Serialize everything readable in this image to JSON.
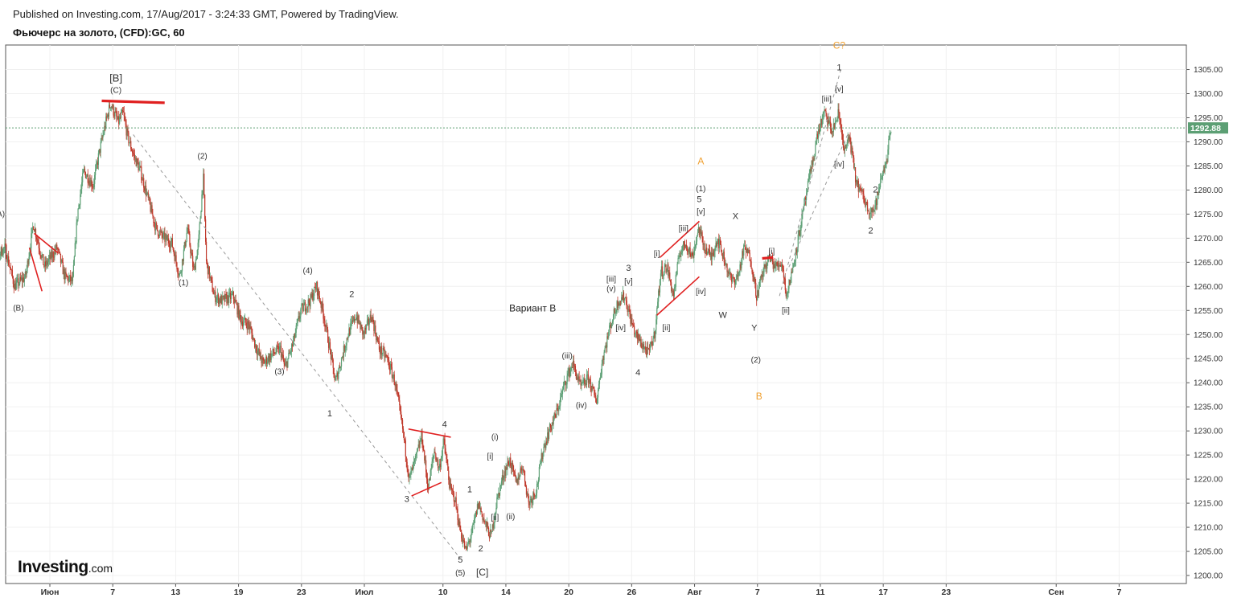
{
  "header": {
    "published": "Published on Investing.com, 17/Aug/2017 - 3:24:33 GMT, Powered by TradingView.",
    "title": "Фьючерс на золото, (CFD):GC, 60"
  },
  "logo": {
    "brand": "Investing",
    "suffix": ".com"
  },
  "colors": {
    "up": "#5c9f74",
    "down": "#c0392b",
    "orange_label": "#f0a030",
    "red_line": "#e02020",
    "dashed": "#999999",
    "price_line": "#5c9f74"
  },
  "chart_data": {
    "type": "candlestick",
    "interval": "60",
    "current_price": 1292.88,
    "current_price_label": "1292.88",
    "ylim": [
      1198,
      1310
    ],
    "y_ticks": [
      1200,
      1205,
      1210,
      1215,
      1220,
      1225,
      1230,
      1235,
      1240,
      1245,
      1250,
      1255,
      1260,
      1265,
      1270,
      1275,
      1280,
      1285,
      1290,
      1295,
      1300,
      1305
    ],
    "y_tick_labels": [
      "1200.00",
      "1205.00",
      "1210.00",
      "1215.00",
      "1220.00",
      "1225.00",
      "1230.00",
      "1235.00",
      "1240.00",
      "1245.00",
      "1250.00",
      "1255.00",
      "1260.00",
      "1265.00",
      "1270.00",
      "1275.00",
      "1280.00",
      "1285.00",
      "1290.00",
      "1295.00",
      "1300.00",
      "1305.00"
    ],
    "xlim": [
      -4.5,
      71
    ],
    "x_ticks": [
      {
        "day": 0,
        "label": "Июн"
      },
      {
        "day": 4,
        "label": "7"
      },
      {
        "day": 8,
        "label": "13"
      },
      {
        "day": 12,
        "label": "19"
      },
      {
        "day": 16,
        "label": "23"
      },
      {
        "day": 20,
        "label": "Июл"
      },
      {
        "day": 25,
        "label": "10"
      },
      {
        "day": 29,
        "label": "14"
      },
      {
        "day": 33,
        "label": "20"
      },
      {
        "day": 37,
        "label": "26"
      },
      {
        "day": 41,
        "label": "Авг"
      },
      {
        "day": 45,
        "label": "7"
      },
      {
        "day": 49,
        "label": "11"
      },
      {
        "day": 53,
        "label": "17"
      },
      {
        "day": 57,
        "label": "23"
      },
      {
        "day": 64,
        "label": "Сен"
      },
      {
        "day": 68,
        "label": "7"
      }
    ],
    "price_path": [
      [
        -4.4,
        1268
      ],
      [
        -3.5,
        1266
      ],
      [
        -2.8,
        1268
      ],
      [
        -2.2,
        1260
      ],
      [
        -1.5,
        1262
      ],
      [
        -1.0,
        1273
      ],
      [
        -0.3,
        1264
      ],
      [
        0.5,
        1268
      ],
      [
        1.0,
        1262
      ],
      [
        1.5,
        1261
      ],
      [
        1.8,
        1275
      ],
      [
        2.2,
        1284
      ],
      [
        2.8,
        1281
      ],
      [
        3.2,
        1288
      ],
      [
        3.6,
        1294
      ],
      [
        3.9,
        1298
      ],
      [
        4.4,
        1294
      ],
      [
        4.7,
        1296
      ],
      [
        5.0,
        1291
      ],
      [
        5.4,
        1287
      ],
      [
        5.8,
        1284
      ],
      [
        6.3,
        1278
      ],
      [
        6.8,
        1272
      ],
      [
        7.3,
        1270
      ],
      [
        7.8,
        1269
      ],
      [
        8.3,
        1262
      ],
      [
        8.8,
        1272
      ],
      [
        9.2,
        1263
      ],
      [
        9.5,
        1269
      ],
      [
        9.8,
        1283
      ],
      [
        10.0,
        1265
      ],
      [
        10.5,
        1258
      ],
      [
        11.0,
        1257
      ],
      [
        11.7,
        1258
      ],
      [
        12.2,
        1253
      ],
      [
        12.7,
        1252
      ],
      [
        13.2,
        1247
      ],
      [
        13.6,
        1244
      ],
      [
        14.2,
        1246
      ],
      [
        14.7,
        1247
      ],
      [
        15.0,
        1243
      ],
      [
        15.5,
        1248
      ],
      [
        16.0,
        1255
      ],
      [
        16.6,
        1257
      ],
      [
        17.0,
        1260
      ],
      [
        17.4,
        1255
      ],
      [
        17.8,
        1248
      ],
      [
        18.2,
        1240
      ],
      [
        18.6,
        1245
      ],
      [
        19.0,
        1250
      ],
      [
        19.5,
        1254
      ],
      [
        20.0,
        1250
      ],
      [
        20.5,
        1254
      ],
      [
        21.0,
        1247
      ],
      [
        21.5,
        1245
      ],
      [
        22.0,
        1240
      ],
      [
        22.5,
        1230
      ],
      [
        22.9,
        1220
      ],
      [
        23.3,
        1224
      ],
      [
        23.7,
        1229
      ],
      [
        24.1,
        1218
      ],
      [
        24.5,
        1226
      ],
      [
        24.8,
        1222
      ],
      [
        25.1,
        1228
      ],
      [
        25.5,
        1218
      ],
      [
        25.8,
        1216
      ],
      [
        26.1,
        1210
      ],
      [
        26.5,
        1205
      ],
      [
        26.9,
        1209
      ],
      [
        27.3,
        1215
      ],
      [
        27.7,
        1211
      ],
      [
        28.1,
        1208
      ],
      [
        28.5,
        1216
      ],
      [
        28.9,
        1221
      ],
      [
        29.3,
        1224
      ],
      [
        29.7,
        1219
      ],
      [
        30.1,
        1223
      ],
      [
        30.5,
        1215
      ],
      [
        31.0,
        1218
      ],
      [
        31.4,
        1226
      ],
      [
        31.8,
        1230
      ],
      [
        32.3,
        1234
      ],
      [
        32.8,
        1240
      ],
      [
        33.3,
        1244
      ],
      [
        33.8,
        1239
      ],
      [
        34.3,
        1241
      ],
      [
        34.8,
        1236
      ],
      [
        35.2,
        1245
      ],
      [
        35.7,
        1252
      ],
      [
        36.2,
        1257
      ],
      [
        36.6,
        1258
      ],
      [
        37.0,
        1253
      ],
      [
        37.3,
        1250
      ],
      [
        37.7,
        1248
      ],
      [
        38.1,
        1246
      ],
      [
        38.5,
        1250
      ],
      [
        38.9,
        1263
      ],
      [
        39.3,
        1264
      ],
      [
        39.7,
        1258
      ],
      [
        40.1,
        1267
      ],
      [
        40.5,
        1269
      ],
      [
        40.9,
        1266
      ],
      [
        41.3,
        1272
      ],
      [
        41.7,
        1268
      ],
      [
        42.1,
        1266
      ],
      [
        42.5,
        1270
      ],
      [
        43.0,
        1265
      ],
      [
        43.4,
        1261
      ],
      [
        43.8,
        1262
      ],
      [
        44.2,
        1268
      ],
      [
        44.6,
        1266
      ],
      [
        45.0,
        1258
      ],
      [
        45.4,
        1263
      ],
      [
        45.8,
        1266
      ],
      [
        46.2,
        1264
      ],
      [
        46.6,
        1265
      ],
      [
        46.9,
        1258
      ],
      [
        47.3,
        1264
      ],
      [
        47.7,
        1271
      ],
      [
        48.1,
        1278
      ],
      [
        48.5,
        1285
      ],
      [
        48.9,
        1292
      ],
      [
        49.3,
        1296
      ],
      [
        49.8,
        1292
      ],
      [
        50.2,
        1296
      ],
      [
        50.6,
        1288
      ],
      [
        50.9,
        1291
      ],
      [
        51.3,
        1282
      ],
      [
        51.7,
        1279
      ],
      [
        52.1,
        1276
      ],
      [
        52.5,
        1276
      ],
      [
        52.9,
        1282
      ],
      [
        53.3,
        1287
      ],
      [
        53.5,
        1292.88
      ]
    ],
    "annotations": [
      {
        "text": "(A)",
        "day": -3.2,
        "price": 1274.5,
        "color": "#333",
        "size": 10
      },
      {
        "text": "(B)",
        "day": -2.0,
        "price": 1255.0,
        "color": "#333",
        "size": 10
      },
      {
        "text": "[B]",
        "day": 4.2,
        "price": 1302.5,
        "color": "#333",
        "size": 13
      },
      {
        "text": "(C)",
        "day": 4.2,
        "price": 1300.2,
        "color": "#333",
        "size": 10
      },
      {
        "text": "(2)",
        "day": 9.7,
        "price": 1286.5,
        "color": "#333",
        "size": 10
      },
      {
        "text": "(1)",
        "day": 8.5,
        "price": 1260.2,
        "color": "#333",
        "size": 10
      },
      {
        "text": "(4)",
        "day": 16.4,
        "price": 1262.7,
        "color": "#333",
        "size": 10
      },
      {
        "text": "(3)",
        "day": 14.6,
        "price": 1241.8,
        "color": "#333",
        "size": 10
      },
      {
        "text": "2",
        "day": 19.2,
        "price": 1257.8,
        "color": "#333",
        "size": 11
      },
      {
        "text": "1",
        "day": 17.8,
        "price": 1233.0,
        "color": "#333",
        "size": 11
      },
      {
        "text": "3",
        "day": 22.7,
        "price": 1215.3,
        "color": "#333",
        "size": 11
      },
      {
        "text": "4",
        "day": 25.1,
        "price": 1230.8,
        "color": "#333",
        "size": 11
      },
      {
        "text": "1",
        "day": 26.7,
        "price": 1217.3,
        "color": "#333",
        "size": 11
      },
      {
        "text": "2",
        "day": 27.4,
        "price": 1205.0,
        "color": "#333",
        "size": 11
      },
      {
        "text": "5",
        "day": 26.1,
        "price": 1202.7,
        "color": "#333",
        "size": 11
      },
      {
        "text": "(5)",
        "day": 26.1,
        "price": 1200.0,
        "color": "#333",
        "size": 10
      },
      {
        "text": "[C]",
        "day": 27.5,
        "price": 1200.0,
        "color": "#333",
        "size": 12
      },
      {
        "text": "(i)",
        "day": 28.3,
        "price": 1228.2,
        "color": "#333",
        "size": 10
      },
      {
        "text": "[i]",
        "day": 28.0,
        "price": 1224.2,
        "color": "#333",
        "size": 10
      },
      {
        "text": "[ii]",
        "day": 28.3,
        "price": 1211.5,
        "color": "#333",
        "size": 10
      },
      {
        "text": "(ii)",
        "day": 29.3,
        "price": 1211.7,
        "color": "#333",
        "size": 10
      },
      {
        "text": "(iii)",
        "day": 32.9,
        "price": 1245.0,
        "color": "#333",
        "size": 10
      },
      {
        "text": "(iv)",
        "day": 33.8,
        "price": 1234.8,
        "color": "#333",
        "size": 10
      },
      {
        "text": "Вариант В",
        "day": 30.7,
        "price": 1254.8,
        "color": "#222",
        "size": 12
      },
      {
        "text": "[iii]",
        "day": 35.7,
        "price": 1261.0,
        "color": "#333",
        "size": 10
      },
      {
        "text": "(v)",
        "day": 35.7,
        "price": 1259.0,
        "color": "#333",
        "size": 10
      },
      {
        "text": "3",
        "day": 36.8,
        "price": 1263.2,
        "color": "#333",
        "size": 11
      },
      {
        "text": "[v]",
        "day": 36.8,
        "price": 1260.5,
        "color": "#333",
        "size": 10
      },
      {
        "text": "[iv]",
        "day": 36.3,
        "price": 1250.9,
        "color": "#333",
        "size": 10
      },
      {
        "text": "4",
        "day": 37.4,
        "price": 1241.5,
        "color": "#333",
        "size": 11
      },
      {
        "text": "[i]",
        "day": 38.6,
        "price": 1266.2,
        "color": "#333",
        "size": 10
      },
      {
        "text": "[ii]",
        "day": 39.2,
        "price": 1250.9,
        "color": "#333",
        "size": 10
      },
      {
        "text": "[iii]",
        "day": 40.3,
        "price": 1271.5,
        "color": "#333",
        "size": 10
      },
      {
        "text": "A",
        "day": 41.4,
        "price": 1285.3,
        "color": "#f0a030",
        "size": 12
      },
      {
        "text": "(1)",
        "day": 41.4,
        "price": 1279.7,
        "color": "#333",
        "size": 10
      },
      {
        "text": "5",
        "day": 41.3,
        "price": 1277.5,
        "color": "#333",
        "size": 11
      },
      {
        "text": "[v]",
        "day": 41.4,
        "price": 1275.0,
        "color": "#333",
        "size": 10
      },
      {
        "text": "[iv]",
        "day": 41.4,
        "price": 1258.4,
        "color": "#333",
        "size": 10
      },
      {
        "text": "X",
        "day": 43.6,
        "price": 1274.0,
        "color": "#333",
        "size": 11
      },
      {
        "text": "W",
        "day": 42.8,
        "price": 1253.5,
        "color": "#333",
        "size": 11
      },
      {
        "text": "Y",
        "day": 44.8,
        "price": 1250.8,
        "color": "#333",
        "size": 11
      },
      {
        "text": "(2)",
        "day": 44.9,
        "price": 1244.2,
        "color": "#333",
        "size": 10
      },
      {
        "text": "B",
        "day": 45.1,
        "price": 1236.5,
        "color": "#f0a030",
        "size": 12
      },
      {
        "text": "[i]",
        "day": 45.9,
        "price": 1266.7,
        "color": "#333",
        "size": 10
      },
      {
        "text": "[ii]",
        "day": 46.8,
        "price": 1254.5,
        "color": "#333",
        "size": 10
      },
      {
        "text": "C?",
        "day": 50.2,
        "price": 1309.3,
        "color": "#f0a030",
        "size": 12
      },
      {
        "text": "1",
        "day": 50.2,
        "price": 1304.8,
        "color": "#333",
        "size": 11
      },
      {
        "text": "[v]",
        "day": 50.2,
        "price": 1300.4,
        "color": "#333",
        "size": 10
      },
      {
        "text": "[iii]",
        "day": 49.4,
        "price": 1298.3,
        "color": "#333",
        "size": 10
      },
      {
        "text": "[iv]",
        "day": 50.2,
        "price": 1284.8,
        "color": "#333",
        "size": 10
      },
      {
        "text": "2",
        "day": 52.5,
        "price": 1279.5,
        "color": "#333",
        "size": 11
      },
      {
        "text": "2",
        "day": 52.2,
        "price": 1271.0,
        "color": "#333",
        "size": 11
      }
    ],
    "red_lines": [
      [
        [
          3.3,
          1298.5
        ],
        [
          7.3,
          1298.1
        ]
      ],
      [
        [
          -1.0,
          1271
        ],
        [
          0.5,
          1267
        ]
      ],
      [
        [
          -1.3,
          1268
        ],
        [
          -0.5,
          1259
        ]
      ],
      [
        [
          22.8,
          1230.4
        ],
        [
          25.5,
          1228.7
        ]
      ],
      [
        [
          23.0,
          1216.5
        ],
        [
          24.9,
          1219.3
        ]
      ],
      [
        [
          38.6,
          1254.0
        ],
        [
          41.3,
          1262.0
        ]
      ],
      [
        [
          38.8,
          1266.0
        ],
        [
          41.3,
          1273.5
        ]
      ],
      [
        [
          45.3,
          1265.8
        ],
        [
          46.0,
          1266.0
        ]
      ]
    ],
    "dashed_lines": [
      [
        [
          5.3,
          1291.5
        ],
        [
          26.1,
          1203.5
        ]
      ],
      [
        [
          46.4,
          1258
        ],
        [
          50.3,
          1305
        ]
      ],
      [
        [
          47.0,
          1264
        ],
        [
          50.8,
          1292
        ]
      ]
    ]
  }
}
